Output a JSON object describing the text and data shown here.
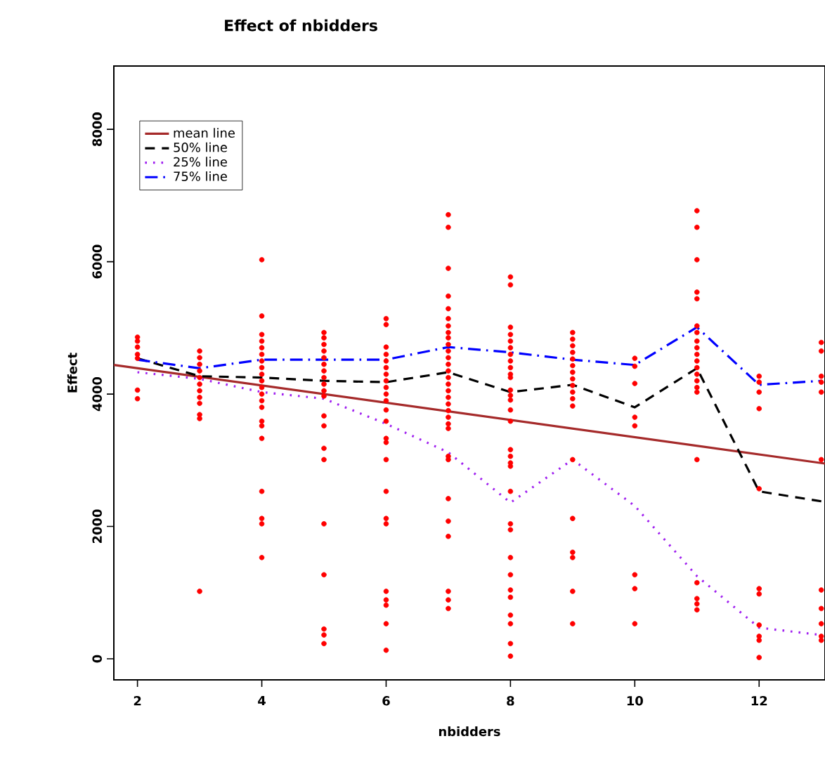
{
  "chart_data": {
    "type": "scatter",
    "title": "Effect of  nbidders",
    "xlabel": "nbidders",
    "ylabel": "Effect",
    "xlim": [
      1.62,
      13.06
    ],
    "ylim": [
      -318,
      8957
    ],
    "xticks": [
      2,
      4,
      6,
      8,
      10,
      12
    ],
    "yticks": [
      0,
      2000,
      4000,
      6000,
      8000
    ],
    "grid": false,
    "legend": "top left",
    "series": [
      {
        "color": "#ff0000",
        "marker": "circle",
        "x": [
          2,
          2,
          2,
          2,
          2,
          2,
          2,
          3,
          3,
          3,
          3,
          3,
          3,
          3,
          3,
          3,
          3,
          3,
          3,
          4,
          4,
          4,
          4,
          4,
          4,
          4,
          4,
          4,
          4,
          4,
          4,
          4,
          4,
          4,
          4,
          4,
          4,
          4,
          4,
          4,
          5,
          5,
          5,
          5,
          5,
          5,
          5,
          5,
          5,
          5,
          5,
          5,
          5,
          5,
          5,
          5,
          5,
          5,
          5,
          5,
          6,
          6,
          6,
          6,
          6,
          6,
          6,
          6,
          6,
          6,
          6,
          6,
          6,
          6,
          6,
          6,
          6,
          6,
          6,
          6,
          6,
          6,
          6,
          6,
          7,
          7,
          7,
          7,
          7,
          7,
          7,
          7,
          7,
          7,
          7,
          7,
          7,
          7,
          7,
          7,
          7,
          7,
          7,
          7,
          7,
          7,
          7,
          7,
          7,
          7,
          7,
          7,
          7,
          7,
          7,
          8,
          8,
          8,
          8,
          8,
          8,
          8,
          8,
          8,
          8,
          8,
          8,
          8,
          8,
          8,
          8,
          8,
          8,
          8,
          8,
          8,
          8,
          8,
          8,
          8,
          8,
          8,
          8,
          8,
          8,
          8,
          9,
          9,
          9,
          9,
          9,
          9,
          9,
          9,
          9,
          9,
          9,
          9,
          9,
          9,
          9,
          9,
          9,
          9,
          10,
          10,
          10,
          10,
          10,
          10,
          10,
          10,
          11,
          11,
          11,
          11,
          11,
          11,
          11,
          11,
          11,
          11,
          11,
          11,
          11,
          11,
          11,
          11,
          11,
          11,
          11,
          11,
          11,
          12,
          12,
          12,
          12,
          12,
          12,
          12,
          12,
          12,
          12,
          12,
          13,
          13,
          13,
          13,
          13,
          13,
          13,
          13,
          13,
          13,
          13
        ],
        "values": [
          4860,
          4800,
          4710,
          4600,
          4540,
          4060,
          3930,
          4650,
          4550,
          4450,
          4350,
          4250,
          4150,
          4050,
          3950,
          3860,
          3690,
          3630,
          1020,
          6030,
          5180,
          4900,
          4800,
          4700,
          4600,
          4500,
          4400,
          4300,
          4200,
          4100,
          4000,
          3900,
          3800,
          3590,
          3520,
          3330,
          2530,
          2120,
          2040,
          1530,
          4930,
          4850,
          4750,
          4650,
          4550,
          4450,
          4350,
          4250,
          4150,
          4050,
          3970,
          3670,
          3520,
          3180,
          3010,
          2040,
          1270,
          450,
          360,
          230,
          5140,
          5050,
          4710,
          4600,
          4500,
          4400,
          4300,
          4200,
          4100,
          4000,
          3900,
          3760,
          3590,
          3330,
          3270,
          3010,
          2530,
          2120,
          2040,
          1020,
          890,
          810,
          530,
          130,
          6710,
          6520,
          5900,
          5480,
          5290,
          5140,
          5030,
          4930,
          4850,
          4750,
          4650,
          4550,
          4450,
          4350,
          4250,
          4150,
          4050,
          3950,
          3850,
          3750,
          3650,
          3550,
          3480,
          3060,
          3010,
          2420,
          2080,
          1850,
          1020,
          890,
          760,
          5770,
          5650,
          5010,
          4900,
          4800,
          4700,
          4600,
          4500,
          4400,
          4300,
          4250,
          4060,
          3980,
          3910,
          3760,
          3590,
          3160,
          3060,
          2960,
          2910,
          2530,
          2040,
          1950,
          1530,
          1270,
          1040,
          930,
          660,
          530,
          230,
          40,
          4930,
          4830,
          4730,
          4630,
          4530,
          4430,
          4330,
          4230,
          4130,
          4030,
          3930,
          3820,
          3010,
          2120,
          1610,
          1530,
          1020,
          530,
          4540,
          4420,
          4160,
          3650,
          3520,
          1270,
          1060,
          530,
          6770,
          6520,
          6030,
          5540,
          5440,
          5030,
          4930,
          4800,
          4700,
          4600,
          4500,
          4400,
          4300,
          4200,
          4100,
          4030,
          3010,
          1150,
          910,
          830,
          740,
          4270,
          4180,
          4030,
          3780,
          2570,
          1060,
          980,
          510,
          340,
          280,
          20,
          4780,
          4650,
          4270,
          4180,
          4030,
          3010,
          1040,
          760,
          530,
          340,
          280
        ]
      },
      {
        "type": "line",
        "name": "mean line",
        "color": "#a52a2a",
        "line_style": "solid",
        "x": [
          1.62,
          13.06
        ],
        "values": [
          4440,
          2950
        ]
      },
      {
        "type": "line",
        "name": "50% line",
        "color": "#000000",
        "line_style": "dashed",
        "x": [
          2,
          3,
          4,
          5,
          6,
          7,
          8,
          9,
          10,
          11,
          12,
          13
        ],
        "values": [
          4540,
          4270,
          4250,
          4200,
          4180,
          4330,
          4030,
          4140,
          3800,
          4390,
          2530,
          2380
        ]
      },
      {
        "type": "line",
        "name": "25% line",
        "color": "#a020f0",
        "line_style": "dotted",
        "x": [
          2,
          3,
          4,
          5,
          6,
          7,
          8,
          9,
          10,
          11,
          12,
          13
        ],
        "values": [
          4330,
          4230,
          4030,
          3930,
          3550,
          3120,
          2360,
          3010,
          2310,
          1250,
          470,
          360
        ]
      },
      {
        "type": "line",
        "name": "75% line",
        "color": "#0000ff",
        "line_style": "dashdot",
        "x": [
          2,
          3,
          4,
          5,
          6,
          7,
          8,
          9,
          10,
          11,
          12,
          13
        ],
        "values": [
          4520,
          4390,
          4520,
          4520,
          4520,
          4710,
          4630,
          4520,
          4440,
          5010,
          4140,
          4200
        ]
      }
    ]
  }
}
